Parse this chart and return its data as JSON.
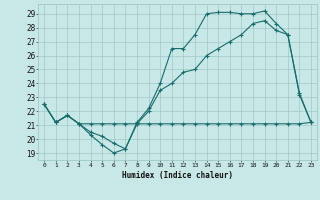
{
  "xlabel": "Humidex (Indice chaleur)",
  "bg_color": "#c8e8e8",
  "grid_color": "#a0c8c8",
  "line_color": "#1a6b6b",
  "xlim": [
    -0.5,
    23.5
  ],
  "ylim": [
    18.5,
    29.7
  ],
  "xticks": [
    0,
    1,
    2,
    3,
    4,
    5,
    6,
    7,
    8,
    9,
    10,
    11,
    12,
    13,
    14,
    15,
    16,
    17,
    18,
    19,
    20,
    21,
    22,
    23
  ],
  "yticks": [
    19,
    20,
    21,
    22,
    23,
    24,
    25,
    26,
    27,
    28,
    29
  ],
  "line1": [
    [
      0,
      22.5
    ],
    [
      1,
      21.2
    ],
    [
      2,
      21.7
    ],
    [
      3,
      21.1
    ],
    [
      4,
      21.1
    ],
    [
      5,
      21.1
    ],
    [
      6,
      21.1
    ],
    [
      7,
      21.1
    ],
    [
      8,
      21.1
    ],
    [
      9,
      21.1
    ],
    [
      10,
      21.1
    ],
    [
      11,
      21.1
    ],
    [
      12,
      21.1
    ],
    [
      13,
      21.1
    ],
    [
      14,
      21.1
    ],
    [
      15,
      21.1
    ],
    [
      16,
      21.1
    ],
    [
      17,
      21.1
    ],
    [
      18,
      21.1
    ],
    [
      19,
      21.1
    ],
    [
      20,
      21.1
    ],
    [
      21,
      21.1
    ],
    [
      22,
      21.1
    ],
    [
      23,
      21.2
    ]
  ],
  "line2": [
    [
      0,
      22.5
    ],
    [
      1,
      21.2
    ],
    [
      2,
      21.7
    ],
    [
      3,
      21.1
    ],
    [
      4,
      20.3
    ],
    [
      5,
      19.6
    ],
    [
      6,
      19.0
    ],
    [
      7,
      19.3
    ],
    [
      8,
      21.2
    ],
    [
      9,
      22.2
    ],
    [
      10,
      24.0
    ],
    [
      11,
      26.5
    ],
    [
      12,
      26.5
    ],
    [
      13,
      27.5
    ],
    [
      14,
      29.0
    ],
    [
      15,
      29.1
    ],
    [
      16,
      29.1
    ],
    [
      17,
      29.0
    ],
    [
      18,
      29.0
    ],
    [
      19,
      29.2
    ],
    [
      20,
      28.3
    ],
    [
      21,
      27.5
    ],
    [
      22,
      23.2
    ],
    [
      23,
      21.2
    ]
  ],
  "line3": [
    [
      0,
      22.5
    ],
    [
      1,
      21.2
    ],
    [
      2,
      21.7
    ],
    [
      3,
      21.1
    ],
    [
      4,
      20.5
    ],
    [
      5,
      20.2
    ],
    [
      6,
      19.7
    ],
    [
      7,
      19.3
    ],
    [
      8,
      21.1
    ],
    [
      9,
      22.0
    ],
    [
      10,
      23.5
    ],
    [
      11,
      24.0
    ],
    [
      12,
      24.8
    ],
    [
      13,
      25.0
    ],
    [
      14,
      26.0
    ],
    [
      15,
      26.5
    ],
    [
      16,
      27.0
    ],
    [
      17,
      27.5
    ],
    [
      18,
      28.3
    ],
    [
      19,
      28.5
    ],
    [
      20,
      27.8
    ],
    [
      21,
      27.5
    ],
    [
      22,
      23.3
    ],
    [
      23,
      21.2
    ]
  ]
}
